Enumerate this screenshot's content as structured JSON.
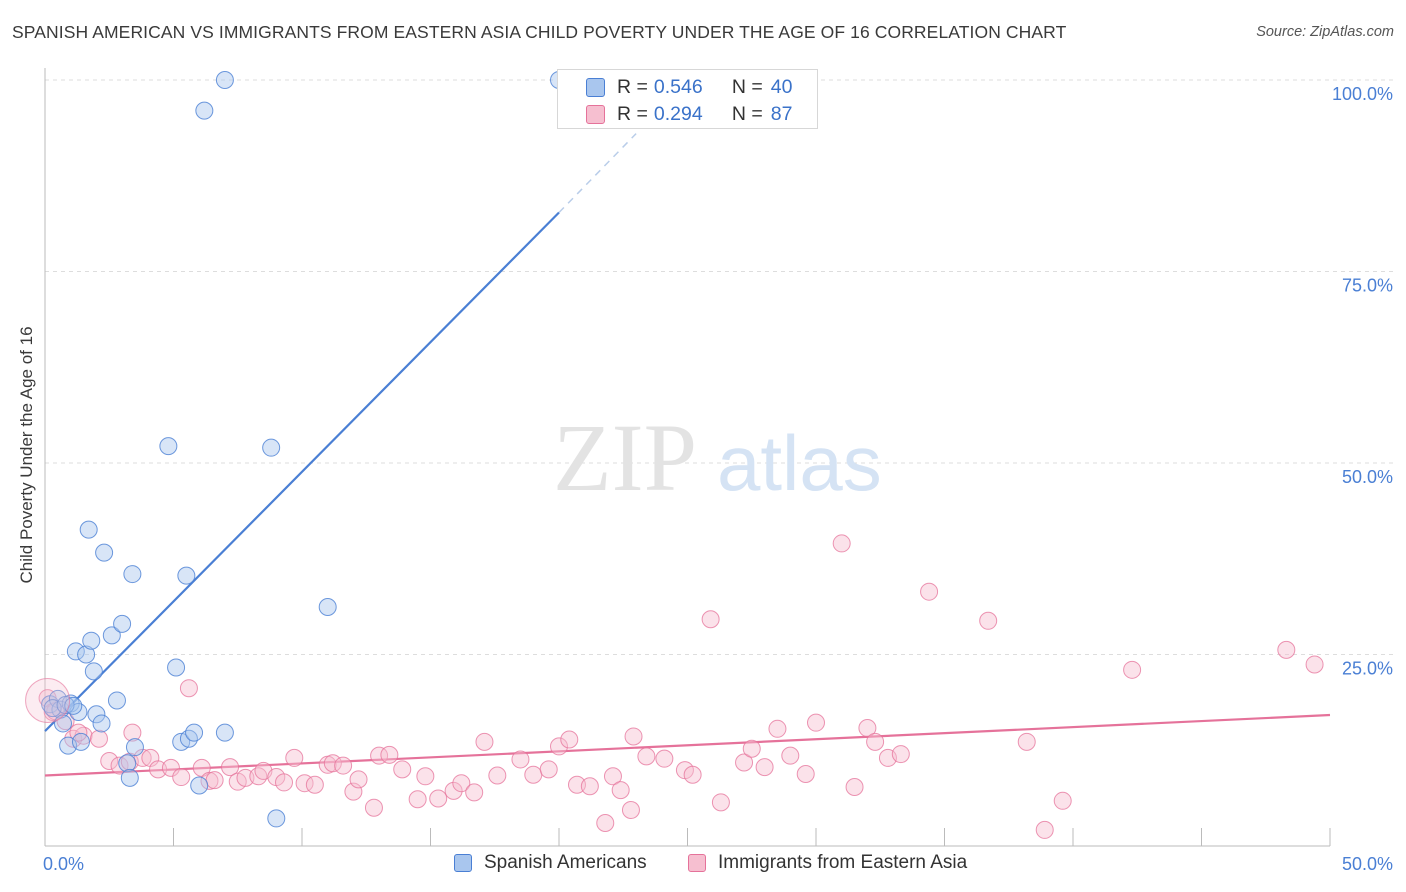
{
  "title": "SPANISH AMERICAN VS IMMIGRANTS FROM EASTERN ASIA CHILD POVERTY UNDER THE AGE OF 16 CORRELATION CHART",
  "source": "Source: ZipAtlas.com",
  "watermark": {
    "zip": "ZIP",
    "atlas": "atlas"
  },
  "colors": {
    "blue": "#4a7fd4",
    "blue_fill": "#a9c6ee",
    "pink": "#e5729a",
    "pink_fill": "#f6bfd0",
    "grid": "#dddddd",
    "axis": "#bbbbbb"
  },
  "legend_stats": [
    {
      "r_label": "R =",
      "r_value": "0.546",
      "n_label": "N =",
      "n_value": "40"
    },
    {
      "r_label": "R =",
      "r_value": "0.294",
      "n_label": "N =",
      "n_value": "87"
    }
  ],
  "chart_data": {
    "type": "scatter",
    "title": "SPANISH AMERICAN VS IMMIGRANTS FROM EASTERN ASIA CHILD POVERTY UNDER THE AGE OF 16 CORRELATION CHART",
    "xlabel": "",
    "ylabel": "Child Poverty Under the Age of 16",
    "xlim": [
      0,
      50
    ],
    "ylim": [
      0,
      102
    ],
    "x_tick_labels": {
      "left": "0.0%",
      "right": "50.0%"
    },
    "y_ticks": [
      25,
      50,
      75,
      100
    ],
    "y_tick_labels": [
      "25.0%",
      "50.0%",
      "75.0%",
      "100.0%"
    ],
    "grid": true,
    "legend_position": "bottom",
    "series": [
      {
        "name": "Spanish Americans",
        "color": "#4a7fd4",
        "r": 0.546,
        "n": 40,
        "trend": {
          "x0": 0,
          "y0": 15.0,
          "x1": 20,
          "y1": 82.7,
          "dashed_to_x": 23.0,
          "dashed_to_y": 93.0
        },
        "points": [
          [
            0.2,
            18.5
          ],
          [
            0.5,
            19.2
          ],
          [
            0.6,
            17.8
          ],
          [
            0.7,
            16.0
          ],
          [
            0.9,
            13.1
          ],
          [
            1.0,
            18.6
          ],
          [
            1.2,
            25.4
          ],
          [
            1.3,
            17.5
          ],
          [
            1.4,
            13.6
          ],
          [
            1.6,
            25.0
          ],
          [
            1.8,
            26.8
          ],
          [
            1.9,
            22.8
          ],
          [
            2.0,
            17.2
          ],
          [
            2.2,
            16.0
          ],
          [
            2.3,
            38.3
          ],
          [
            2.6,
            27.5
          ],
          [
            2.8,
            19.0
          ],
          [
            3.0,
            29.0
          ],
          [
            3.2,
            10.8
          ],
          [
            3.3,
            8.9
          ],
          [
            3.4,
            35.5
          ],
          [
            3.5,
            12.9
          ],
          [
            4.8,
            52.2
          ],
          [
            5.1,
            23.3
          ],
          [
            5.3,
            13.6
          ],
          [
            5.5,
            35.3
          ],
          [
            5.6,
            14.0
          ],
          [
            5.8,
            14.8
          ],
          [
            6.0,
            7.9
          ],
          [
            6.2,
            96.0
          ],
          [
            7.0,
            14.8
          ],
          [
            7.0,
            100.0
          ],
          [
            8.8,
            52.0
          ],
          [
            9.0,
            3.6
          ],
          [
            11.0,
            31.2
          ],
          [
            20.0,
            100.0
          ],
          [
            1.7,
            41.3
          ],
          [
            0.3,
            18.0
          ],
          [
            0.8,
            18.4
          ],
          [
            1.1,
            18.3
          ]
        ]
      },
      {
        "name": "Immigrants from Eastern Asia",
        "color": "#e5729a",
        "r": 0.294,
        "n": 87,
        "trend": {
          "x0": 0,
          "y0": 9.2,
          "x1": 50,
          "y1": 17.1
        },
        "points": [
          [
            0.1,
            19.3
          ],
          [
            0.3,
            17.5
          ],
          [
            0.8,
            16.3
          ],
          [
            1.1,
            14.0
          ],
          [
            1.5,
            14.4
          ],
          [
            2.1,
            14.0
          ],
          [
            2.5,
            11.1
          ],
          [
            2.9,
            10.5
          ],
          [
            3.3,
            11.0
          ],
          [
            3.4,
            14.8
          ],
          [
            3.8,
            11.5
          ],
          [
            4.1,
            11.5
          ],
          [
            4.4,
            10.0
          ],
          [
            4.9,
            10.2
          ],
          [
            5.3,
            9.0
          ],
          [
            5.6,
            20.6
          ],
          [
            6.1,
            10.2
          ],
          [
            6.4,
            8.5
          ],
          [
            6.6,
            8.6
          ],
          [
            7.2,
            10.3
          ],
          [
            7.5,
            8.4
          ],
          [
            7.8,
            8.9
          ],
          [
            8.3,
            9.1
          ],
          [
            8.5,
            9.8
          ],
          [
            9.0,
            9.0
          ],
          [
            9.3,
            8.3
          ],
          [
            9.7,
            11.5
          ],
          [
            10.1,
            8.2
          ],
          [
            10.5,
            8.0
          ],
          [
            11.0,
            10.6
          ],
          [
            11.2,
            10.8
          ],
          [
            11.6,
            10.5
          ],
          [
            12.0,
            7.1
          ],
          [
            12.2,
            8.7
          ],
          [
            12.8,
            5.0
          ],
          [
            13.0,
            11.8
          ],
          [
            13.4,
            11.9
          ],
          [
            13.9,
            10.0
          ],
          [
            14.5,
            6.1
          ],
          [
            14.8,
            9.1
          ],
          [
            15.3,
            6.2
          ],
          [
            15.9,
            7.2
          ],
          [
            16.2,
            8.2
          ],
          [
            16.7,
            7.0
          ],
          [
            17.1,
            13.6
          ],
          [
            17.6,
            9.2
          ],
          [
            18.5,
            11.3
          ],
          [
            19.0,
            9.3
          ],
          [
            19.6,
            10.0
          ],
          [
            20.0,
            13.0
          ],
          [
            20.4,
            13.9
          ],
          [
            20.7,
            8.0
          ],
          [
            21.2,
            7.8
          ],
          [
            21.8,
            3.0
          ],
          [
            22.1,
            9.1
          ],
          [
            22.4,
            7.3
          ],
          [
            22.8,
            4.7
          ],
          [
            22.9,
            14.3
          ],
          [
            23.4,
            11.7
          ],
          [
            24.1,
            11.4
          ],
          [
            24.9,
            9.9
          ],
          [
            25.2,
            9.3
          ],
          [
            25.9,
            29.6
          ],
          [
            26.3,
            5.7
          ],
          [
            27.2,
            10.9
          ],
          [
            27.5,
            12.7
          ],
          [
            28.0,
            10.3
          ],
          [
            28.5,
            15.3
          ],
          [
            29.0,
            11.8
          ],
          [
            29.6,
            9.4
          ],
          [
            30.0,
            16.1
          ],
          [
            31.0,
            39.5
          ],
          [
            31.5,
            7.7
          ],
          [
            32.0,
            15.4
          ],
          [
            32.3,
            13.6
          ],
          [
            32.8,
            11.5
          ],
          [
            33.3,
            12.0
          ],
          [
            34.4,
            33.2
          ],
          [
            36.7,
            29.4
          ],
          [
            38.2,
            13.6
          ],
          [
            38.9,
            2.1
          ],
          [
            39.6,
            5.9
          ],
          [
            42.3,
            23.0
          ],
          [
            48.3,
            25.6
          ],
          [
            49.4,
            23.7
          ],
          [
            0.4,
            17.6
          ],
          [
            1.3,
            14.8
          ]
        ]
      }
    ]
  },
  "legend_bottom": [
    {
      "label": "Spanish Americans"
    },
    {
      "label": "Immigrants from Eastern Asia"
    }
  ]
}
